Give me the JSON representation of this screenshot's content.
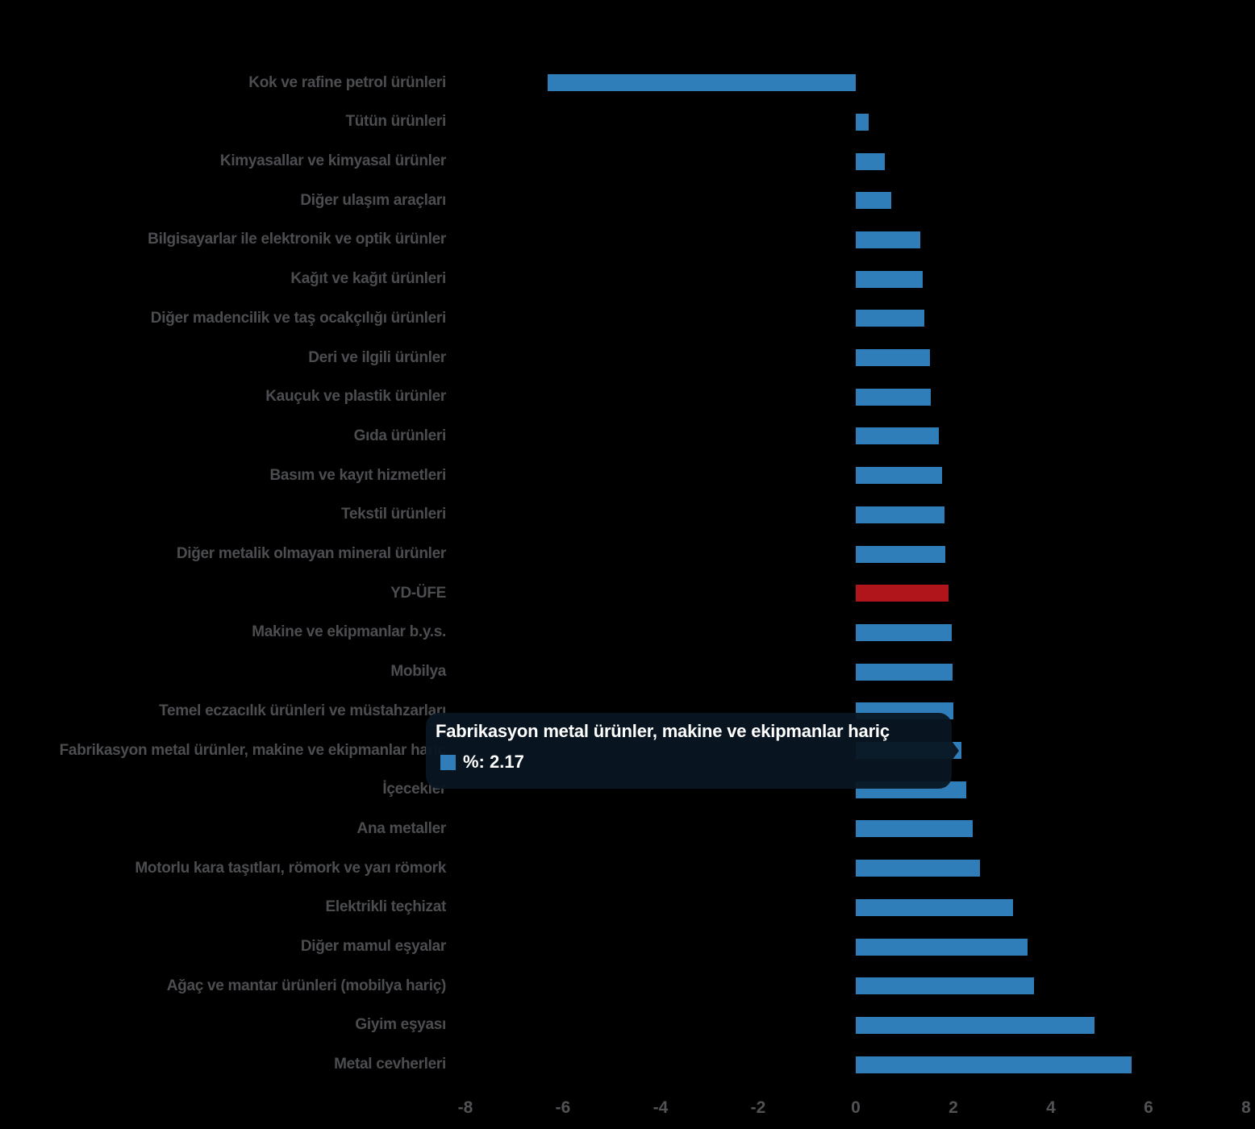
{
  "chart_data": {
    "type": "bar",
    "orientation": "horizontal",
    "title": "",
    "xlabel": "",
    "ylabel": "",
    "series_name": "%",
    "xlim": [
      -8,
      8
    ],
    "x_ticks": [
      -8,
      -6,
      -4,
      -2,
      0,
      2,
      4,
      6,
      8
    ],
    "grid": false,
    "categories": [
      "Kok ve rafine petrol ürünleri",
      "Tütün ürünleri",
      "Kimyasallar ve kimyasal ürünler",
      "Diğer ulaşım araçları",
      "Bilgisayarlar ile elektronik ve optik ürünler",
      "Kağıt ve kağıt ürünleri",
      "Diğer madencilik ve taş ocakçılığı ürünleri",
      "Deri ve ilgili ürünler",
      "Kauçuk ve plastik ürünler",
      "Gıda ürünleri",
      "Basım ve kayıt hizmetleri",
      "Tekstil ürünleri",
      "Diğer metalik olmayan mineral ürünler",
      "YD-ÜFE",
      "Makine ve ekipmanlar b.y.s.",
      "Mobilya",
      "Temel eczacılık ürünleri ve müstahzarları",
      "Fabrikasyon metal ürünler, makine ve ekipmanlar hariç",
      "İçecekler",
      "Ana metaller",
      "Motorlu kara taşıtları, römork ve yarı römork",
      "Elektrikli teçhizat",
      "Diğer mamul eşyalar",
      "Ağaç ve mantar ürünleri (mobilya hariç)",
      "Giyim eşyası",
      "Metal cevherleri"
    ],
    "values": [
      -6.31,
      0.27,
      0.6,
      0.73,
      1.33,
      1.37,
      1.41,
      1.52,
      1.54,
      1.7,
      1.77,
      1.82,
      1.83,
      1.9,
      1.96,
      1.98,
      2.0,
      2.17,
      2.26,
      2.4,
      2.55,
      3.23,
      3.52,
      3.66,
      4.9,
      5.65
    ],
    "emphasis_index": 13,
    "hover_index": 17,
    "colors": {
      "bar": "#2f7db9",
      "emphasis": "#b1151c",
      "category_label": "#4c4d50",
      "axis_label": "#515255",
      "tooltip_bg": "rgba(9,21,33,0.94)",
      "tooltip_arrow": "#0c1823",
      "tooltip_text": "#ffffff"
    }
  },
  "tooltip": {
    "title": "Fabrikasyon metal ürünler, makine ve ekipmanlar hariç",
    "value_line": "%: 2.17"
  }
}
